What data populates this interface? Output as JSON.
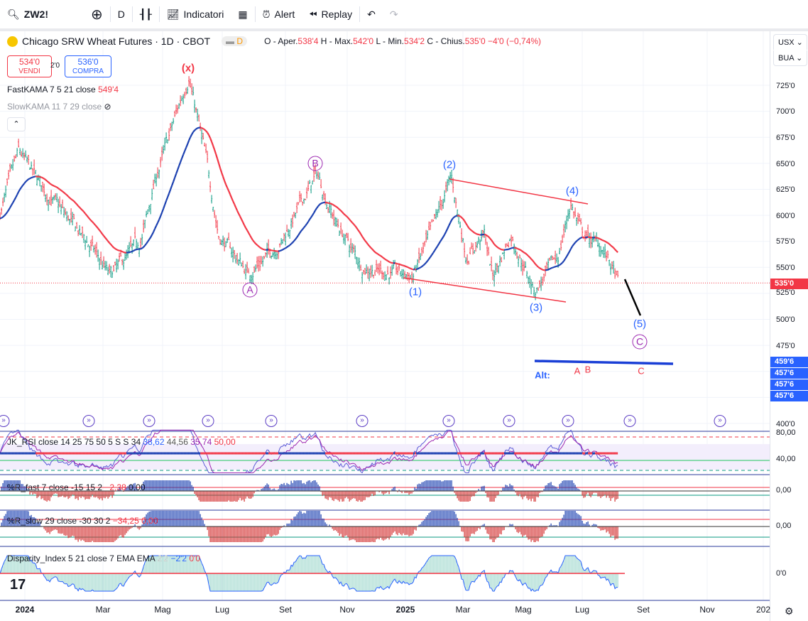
{
  "toolbar": {
    "symbol": "ZW2!",
    "interval": "D",
    "indicators": "Indicatori",
    "alert": "Alert",
    "replay": "Replay"
  },
  "legend": {
    "title": "Chicago SRW Wheat Futures · 1D · CBOT",
    "d_badge": "D",
    "o_label": "O - Aper.",
    "o": "538'4",
    "h_label": "H - Max.",
    "h": "542'0",
    "l_label": "L - Min.",
    "l": "534'2",
    "c_label": "C - Chius.",
    "c": "535'0",
    "change": "−4'0 (−0,74%)"
  },
  "trade": {
    "sell_price": "534'0",
    "sell_label": "VENDI",
    "spread": "2'0",
    "buy_price": "536'0",
    "buy_label": "COMPRA"
  },
  "indicators": {
    "fastkama": {
      "label": "FastKAMA 7 5 21 close",
      "value": "549'4"
    },
    "slowkama": {
      "label": "SlowKAMA 11 7 29 close"
    },
    "rsi": {
      "label": "JK_RSI close 14 25 75 50 5 S S 34",
      "v1": "38,62",
      "v2": "44,56",
      "v3": "35,74",
      "v4": "50,00"
    },
    "rfast": {
      "label": "%R_fast 7 close -15 15 2",
      "v1": "−2,38",
      "v2": "0,00"
    },
    "rslow": {
      "label": "%R_slow 29 close -30 30 2",
      "v1": "−34,25",
      "v2": "0,00"
    },
    "disp": {
      "label": "Disparity_Index 5 21 close 7 EMA EMA",
      "v1": "2'2",
      "v2": "−2'2",
      "v3": "0'0"
    }
  },
  "price_axis": {
    "currency": "USX",
    "unit": "BUA",
    "labels": [
      "725'0",
      "700'0",
      "675'0",
      "650'0",
      "625'0",
      "600'0",
      "575'0",
      "550'0",
      "525'0",
      "500'0",
      "475'0",
      "400'0"
    ],
    "last_price": "535'0",
    "tags": [
      "459'6",
      "457'6",
      "457'6",
      "457'6"
    ]
  },
  "pane_axes": {
    "rsi": [
      "80,00",
      "40,00"
    ],
    "rfast": "0,00",
    "rslow": "0,00",
    "disp": "0'0"
  },
  "time_axis": [
    "2024",
    "Mar",
    "Mag",
    "Lug",
    "Set",
    "Nov",
    "2025",
    "Mar",
    "Mag",
    "Lug",
    "Set",
    "Nov",
    "202"
  ],
  "waves": {
    "x": "(x)",
    "A": "A",
    "B": "B",
    "w1": "(1)",
    "w2": "(2)",
    "w3": "(3)",
    "w4": "(4)",
    "w5": "(5)",
    "C": "C",
    "alt": "Alt:",
    "altA": "A",
    "altB": "B",
    "altC": "C"
  },
  "colors": {
    "up": "#089981",
    "down": "#f23645",
    "blue": "#2962ff",
    "purple": "#9c27b0"
  },
  "chart_data": {
    "type": "ohlc",
    "note": "approximate price path, months since Jan 2024",
    "price_keypoints": [
      [
        -0.83,
        602
      ],
      [
        -0.2,
        660
      ],
      [
        0.6,
        626
      ],
      [
        2.26,
        568
      ],
      [
        2.86,
        541
      ],
      [
        3.9,
        575
      ],
      [
        4.4,
        636
      ],
      [
        5.5,
        735
      ],
      [
        6.1,
        650
      ],
      [
        6.5,
        582
      ],
      [
        7.5,
        544
      ],
      [
        8.6,
        575
      ],
      [
        9.8,
        640
      ],
      [
        10.4,
        595
      ],
      [
        11.3,
        551
      ],
      [
        13.0,
        541
      ],
      [
        13.7,
        588
      ],
      [
        14.3,
        636
      ],
      [
        14.8,
        561
      ],
      [
        15.4,
        582
      ],
      [
        15.7,
        541
      ],
      [
        16.3,
        582
      ],
      [
        17.1,
        527
      ],
      [
        17.9,
        561
      ],
      [
        18.3,
        612
      ],
      [
        18.7,
        582
      ],
      [
        19.4,
        568
      ],
      [
        19.9,
        535
      ]
    ]
  }
}
